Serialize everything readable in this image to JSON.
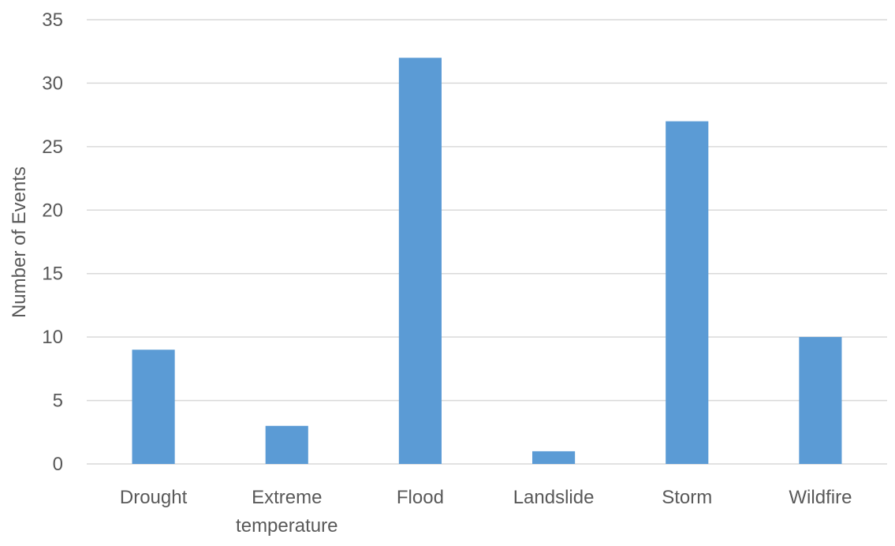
{
  "chart_data": {
    "type": "bar",
    "categories": [
      [
        "Drought"
      ],
      [
        "Extreme",
        "temperature"
      ],
      [
        "Flood"
      ],
      [
        "Landslide"
      ],
      [
        "Storm"
      ],
      [
        "Wildfire"
      ]
    ],
    "series": [
      {
        "values": [
          9,
          3,
          32,
          1,
          27,
          10
        ]
      }
    ],
    "title": "",
    "xlabel": "",
    "ylabel": "Number of Events",
    "ylim": [
      0,
      35
    ],
    "yticks": [
      "0",
      "5",
      "10",
      "15",
      "20",
      "25",
      "30",
      "35"
    ],
    "grid": true,
    "legend": "none",
    "bar_color": "#5b9bd5"
  }
}
